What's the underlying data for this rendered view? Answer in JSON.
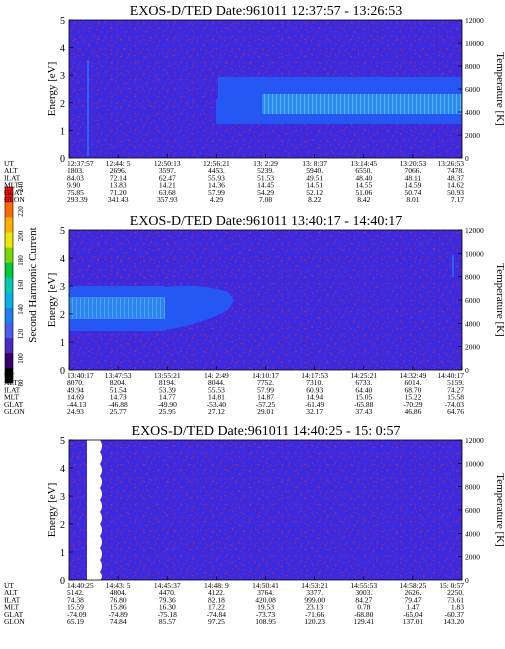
{
  "figure": {
    "colorbar": {
      "label": "Second Harmonic Current",
      "ticks": [
        "80",
        "100",
        "120",
        "140",
        "160",
        "180",
        "200",
        "220",
        "240"
      ],
      "colors": [
        "#000000",
        "#3a006a",
        "#4a2bbf",
        "#4b5cf4",
        "#1d7ff2",
        "#08b0ea",
        "#00cbb0",
        "#00c83c",
        "#78d800",
        "#e8e800",
        "#ffb000",
        "#ff6a00",
        "#ee1000"
      ]
    },
    "panels": [
      {
        "title": "EXOS-D/TED   Date:961011   12:37:57 - 13:26:53",
        "ylabel_left": "Energy [eV]",
        "ylabel_right": "Temperature [K]",
        "energy_ticks": [
          "0",
          "1",
          "2",
          "3",
          "4",
          "5"
        ],
        "temperature_ticks": [
          "0",
          "2000",
          "4000",
          "6000",
          "8000",
          "10000",
          "12000"
        ],
        "rows": [
          {
            "label": "UT",
            "values": [
              "12:37:57",
              "12:44: 5",
              "12:50:13",
              "12:56:21",
              "13: 2:29",
              "13: 8:37",
              "13:14:45",
              "13:20:53",
              "13:26:53"
            ]
          },
          {
            "label": "ALT",
            "values": [
              "1803.",
              "2696.",
              "3597.",
              "4453.",
              "5239.",
              "5940.",
              "6550.",
              "7066.",
              "7478."
            ]
          },
          {
            "label": "ILAT",
            "values": [
              "84.03",
              "72.14",
              "62.47",
              "55.93",
              "51.53",
              "49.51",
              "48.40",
              "48.11",
              "48.37"
            ]
          },
          {
            "label": "MLT",
            "values": [
              "9.90",
              "13.83",
              "14.21",
              "14.36",
              "14.45",
              "14.51",
              "14.55",
              "14.59",
              "14.62"
            ]
          },
          {
            "label": "GLAT",
            "values": [
              "75.85",
              "71.20",
              "63.68",
              "57.99",
              "54.29",
              "52.12",
              "51.06",
              "50.74",
              "50.93"
            ]
          },
          {
            "label": "GLON",
            "values": [
              "293.39",
              "341.43",
              "357.93",
              "4.29",
              "7.08",
              "8.22",
              "8.42",
              "8.01",
              "7.17"
            ]
          }
        ]
      },
      {
        "title": "EXOS-D/TED   Date:961011   13:40:17 - 14:40:17",
        "ylabel_left": "Energy [eV]",
        "ylabel_right": "Temperature [K]",
        "energy_ticks": [
          "0",
          "1",
          "2",
          "3",
          "4",
          "5"
        ],
        "temperature_ticks": [
          "0",
          "2000",
          "4000",
          "6000",
          "8000",
          "10000",
          "12000"
        ],
        "rows": [
          {
            "label": "UT",
            "values": [
              "13:40:17",
              "13:47:53",
              "13:55:21",
              "14: 2:49",
              "14:10:17",
              "14:17:53",
              "14:25:21",
              "14:32:49",
              "14:40:17"
            ]
          },
          {
            "label": "ALT",
            "values": [
              "8070.",
              "8204.",
              "8194.",
              "8044.",
              "7752.",
              "7310.",
              "6733.",
              "6014.",
              "5159."
            ]
          },
          {
            "label": "ILAT",
            "values": [
              "49.94",
              "51.54",
              "53.39",
              "55.53",
              "57.99",
              "60.93",
              "64.40",
              "68.70",
              "74.27"
            ]
          },
          {
            "label": "MLT",
            "values": [
              "14.69",
              "14.73",
              "14.77",
              "14.81",
              "14.87",
              "14.94",
              "15.05",
              "15.22",
              "15.58"
            ]
          },
          {
            "label": "GLAT",
            "values": [
              "-44.13",
              "-46.88",
              "-49.90",
              "-53.40",
              "-57.25",
              "-61.49",
              "-65.88",
              "-70.29",
              "-74.03"
            ]
          },
          {
            "label": "GLON",
            "values": [
              "24.93",
              "25.77",
              "25.95",
              "27.12",
              "29.01",
              "32.17",
              "37.43",
              "46.86",
              "64.76"
            ]
          }
        ]
      },
      {
        "title": "EXOS-D/TED   Date:961011   14:40:25 - 15: 0:57",
        "ylabel_left": "Energy [eV]",
        "ylabel_right": "Temperature [K]",
        "energy_ticks": [
          "0",
          "1",
          "2",
          "3",
          "4",
          "5"
        ],
        "temperature_ticks": [
          "0",
          "2000",
          "4000",
          "6000",
          "8000",
          "10000",
          "12000"
        ],
        "rows": [
          {
            "label": "UT",
            "values": [
              "14:40:25",
              "14:43: 5",
              "14:45:37",
              "14:48: 9",
              "14:50:41",
              "14:53:21",
              "14:55:53",
              "14:58:25",
              "15: 0:57"
            ]
          },
          {
            "label": "ALT",
            "values": [
              "5142.",
              "4804.",
              "4470.",
              "4122.",
              "3764.",
              "3377.",
              "3003.",
              "2626.",
              "2250."
            ]
          },
          {
            "label": "ILAT",
            "values": [
              "74.38",
              "76.80",
              "79.36",
              "82.18",
              "420.08",
              "999.00",
              "84.27",
              "79.47",
              "73.61"
            ]
          },
          {
            "label": "MLT",
            "values": [
              "15.59",
              "15.86",
              "16.30",
              "17.22",
              "19.53",
              "23.13",
              "0.78",
              "1.47",
              "1.83"
            ]
          },
          {
            "label": "GLAT",
            "values": [
              "-74.09",
              "-74.89",
              "-75.18",
              "-74.84",
              "-73.73",
              "-71.66",
              "-68.80",
              "-65.04",
              "-60.37"
            ]
          },
          {
            "label": "GLON",
            "values": [
              "65.19",
              "74.84",
              "85.57",
              "97.25",
              "108.95",
              "120.23",
              "129.41",
              "137.01",
              "143.20"
            ]
          }
        ]
      }
    ]
  },
  "chart_data": [
    {
      "type": "heatmap",
      "title": "EXOS-D/TED   Date:961011   12:37:57 - 13:26:53",
      "xlabel": "",
      "ylabel": "Energy [eV]",
      "y2label": "Temperature [K]",
      "ylim": [
        0,
        5
      ],
      "y2lim": [
        0,
        12000
      ],
      "x": [
        "12:37:57",
        "12:44: 5",
        "12:50:13",
        "12:56:21",
        "13: 2:29",
        "13: 8:37",
        "13:14:45",
        "13:20:53",
        "13:26:53"
      ],
      "colorbar_label": "Second Harmonic Current",
      "colorbar_range": [
        80,
        240
      ],
      "features": [
        {
          "kind": "band",
          "x_start": "12:56:21",
          "x_end": "13:26:53",
          "energy_range": [
            1.2,
            2.9
          ],
          "level": 145
        },
        {
          "kind": "band_core",
          "x_start": "13: 2:29",
          "x_end": "13:26:53",
          "energy_range": [
            1.6,
            2.3
          ],
          "level": 160
        },
        {
          "kind": "spike",
          "x": "12:38:30",
          "energy_range": [
            0.3,
            5.0
          ],
          "level": 135
        }
      ]
    },
    {
      "type": "heatmap",
      "title": "EXOS-D/TED   Date:961011   13:40:17 - 14:40:17",
      "xlabel": "",
      "ylabel": "Energy [eV]",
      "y2label": "Temperature [K]",
      "ylim": [
        0,
        5
      ],
      "y2lim": [
        0,
        12000
      ],
      "x": [
        "13:40:17",
        "13:47:53",
        "13:55:21",
        "14: 2:49",
        "14:10:17",
        "14:17:53",
        "14:25:21",
        "14:32:49",
        "14:40:17"
      ],
      "colorbar_label": "Second Harmonic Current",
      "colorbar_range": [
        80,
        240
      ],
      "features": [
        {
          "kind": "band",
          "x_start": "13:40:17",
          "x_end": "13:56:30",
          "energy_range": [
            1.2,
            3.0
          ],
          "level": 145
        },
        {
          "kind": "band_tail",
          "x_start": "13:56:30",
          "x_end": "14: 4:00",
          "energy_range": [
            1.5,
            2.6
          ],
          "level": 140
        },
        {
          "kind": "spike",
          "x": "14:40:00",
          "energy_range": [
            2.8,
            3.6
          ],
          "level": 135
        }
      ]
    },
    {
      "type": "heatmap",
      "title": "EXOS-D/TED   Date:961011   14:40:25 - 15: 0:57",
      "xlabel": "",
      "ylabel": "Energy [eV]",
      "y2label": "Temperature [K]",
      "ylim": [
        0,
        5
      ],
      "y2lim": [
        0,
        12000
      ],
      "x": [
        "14:40:25",
        "14:43: 5",
        "14:45:37",
        "14:48: 9",
        "14:50:41",
        "14:53:21",
        "14:55:53",
        "14:58:25",
        "15: 0:57"
      ],
      "colorbar_label": "Second Harmonic Current",
      "colorbar_range": [
        80,
        240
      ],
      "features": [
        {
          "kind": "no_data",
          "x_start": "14:40:42",
          "x_end": "14:41:20",
          "energy_range": [
            0,
            5
          ]
        }
      ]
    }
  ]
}
